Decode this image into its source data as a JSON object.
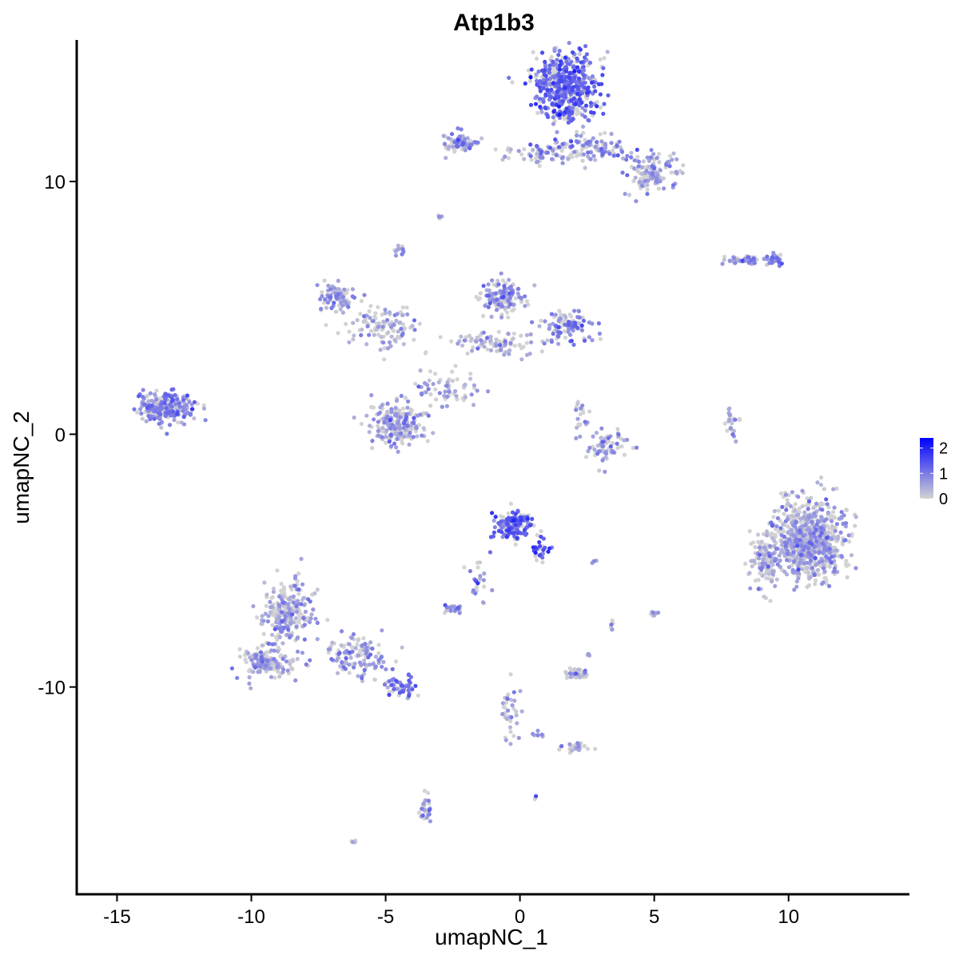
{
  "chart_data": {
    "type": "scatter",
    "title": "Atp1b3",
    "xlabel": "umapNC_1",
    "ylabel": "umapNC_2",
    "xlim": [
      -16.5,
      14.5
    ],
    "ylim": [
      -18.2,
      15.6
    ],
    "x_ticks": [
      -15,
      -10,
      -5,
      0,
      5,
      10
    ],
    "x_tick_labels": [
      "-15",
      "-10",
      "-5",
      "0",
      "5",
      "10"
    ],
    "y_ticks": [
      -10,
      0,
      10
    ],
    "y_tick_labels": [
      "-10",
      "0",
      "10"
    ],
    "color_scale": {
      "low": "#d3d3d3",
      "high": "#0000ff",
      "min": 0,
      "max": 2.4,
      "ticks": [
        2,
        1,
        0
      ],
      "tick_labels": [
        "2",
        "1",
        "0"
      ],
      "legend_position": "right"
    },
    "clusters": [
      {
        "center": [
          1.7,
          13.8
        ],
        "spread": [
          1.1,
          1.3
        ],
        "count": 520,
        "mean_expr": 1.15
      },
      {
        "center": [
          4.8,
          10.3
        ],
        "spread": [
          0.9,
          0.7
        ],
        "count": 140,
        "mean_expr": 0.45
      },
      {
        "center": [
          2.5,
          11.3
        ],
        "spread": [
          1.5,
          0.5
        ],
        "count": 120,
        "mean_expr": 0.75
      },
      {
        "center": [
          -2.2,
          11.5
        ],
        "spread": [
          0.6,
          0.35
        ],
        "count": 70,
        "mean_expr": 0.8
      },
      {
        "center": [
          0.4,
          11.1
        ],
        "spread": [
          1.2,
          0.3
        ],
        "count": 40,
        "mean_expr": 0.55
      },
      {
        "center": [
          -3.0,
          8.6
        ],
        "spread": [
          0.1,
          0.1
        ],
        "count": 6,
        "mean_expr": 0.5
      },
      {
        "center": [
          -4.5,
          7.3
        ],
        "spread": [
          0.15,
          0.2
        ],
        "count": 12,
        "mean_expr": 0.65
      },
      {
        "center": [
          -6.8,
          5.4
        ],
        "spread": [
          0.6,
          0.5
        ],
        "count": 90,
        "mean_expr": 0.6
      },
      {
        "center": [
          -5.0,
          4.2
        ],
        "spread": [
          1.2,
          0.8
        ],
        "count": 110,
        "mean_expr": 0.35
      },
      {
        "center": [
          -0.6,
          5.4
        ],
        "spread": [
          0.8,
          0.6
        ],
        "count": 130,
        "mean_expr": 0.7
      },
      {
        "center": [
          1.8,
          4.3
        ],
        "spread": [
          0.8,
          0.5
        ],
        "count": 110,
        "mean_expr": 0.85
      },
      {
        "center": [
          -1.0,
          3.6
        ],
        "spread": [
          1.8,
          0.5
        ],
        "count": 90,
        "mean_expr": 0.4
      },
      {
        "center": [
          -4.6,
          0.4
        ],
        "spread": [
          0.9,
          0.8
        ],
        "count": 240,
        "mean_expr": 0.5
      },
      {
        "center": [
          -2.5,
          1.8
        ],
        "spread": [
          1.2,
          0.6
        ],
        "count": 60,
        "mean_expr": 0.35
      },
      {
        "center": [
          -13.2,
          1.1
        ],
        "spread": [
          0.9,
          0.55
        ],
        "count": 260,
        "mean_expr": 0.75
      },
      {
        "center": [
          3.3,
          -0.5
        ],
        "spread": [
          0.7,
          0.6
        ],
        "count": 70,
        "mean_expr": 0.55
      },
      {
        "center": [
          2.3,
          0.8
        ],
        "spread": [
          0.3,
          0.6
        ],
        "count": 20,
        "mean_expr": 0.6
      },
      {
        "center": [
          8.2,
          6.9
        ],
        "spread": [
          0.7,
          0.15
        ],
        "count": 55,
        "mean_expr": 0.75
      },
      {
        "center": [
          9.5,
          6.9
        ],
        "spread": [
          0.35,
          0.2
        ],
        "count": 35,
        "mean_expr": 0.9
      },
      {
        "center": [
          7.9,
          0.4
        ],
        "spread": [
          0.2,
          0.6
        ],
        "count": 25,
        "mean_expr": 0.35
      },
      {
        "center": [
          10.8,
          -4.2
        ],
        "spread": [
          1.2,
          1.4
        ],
        "count": 780,
        "mean_expr": 0.45
      },
      {
        "center": [
          9.1,
          -5.0
        ],
        "spread": [
          0.5,
          1.2
        ],
        "count": 110,
        "mean_expr": 0.35
      },
      {
        "center": [
          -0.2,
          -3.6
        ],
        "spread": [
          0.6,
          0.5
        ],
        "count": 150,
        "mean_expr": 1.25
      },
      {
        "center": [
          0.8,
          -4.6
        ],
        "spread": [
          0.3,
          0.5
        ],
        "count": 30,
        "mean_expr": 1.3
      },
      {
        "center": [
          -1.5,
          -5.8
        ],
        "spread": [
          0.35,
          0.7
        ],
        "count": 25,
        "mean_expr": 0.8
      },
      {
        "center": [
          -2.5,
          -6.9
        ],
        "spread": [
          0.35,
          0.15
        ],
        "count": 25,
        "mean_expr": 0.6
      },
      {
        "center": [
          2.8,
          -5.0
        ],
        "spread": [
          0.1,
          0.1
        ],
        "count": 5,
        "mean_expr": 0.5
      },
      {
        "center": [
          -8.7,
          -7.0
        ],
        "spread": [
          0.9,
          1.2
        ],
        "count": 230,
        "mean_expr": 0.45
      },
      {
        "center": [
          -9.4,
          -9.0
        ],
        "spread": [
          0.9,
          0.6
        ],
        "count": 170,
        "mean_expr": 0.55
      },
      {
        "center": [
          -6.0,
          -8.8
        ],
        "spread": [
          1.1,
          0.8
        ],
        "count": 120,
        "mean_expr": 0.65
      },
      {
        "center": [
          -4.3,
          -10.0
        ],
        "spread": [
          0.6,
          0.4
        ],
        "count": 50,
        "mean_expr": 1.0
      },
      {
        "center": [
          2.1,
          -9.5
        ],
        "spread": [
          0.4,
          0.2
        ],
        "count": 40,
        "mean_expr": 0.25
      },
      {
        "center": [
          2.6,
          -8.7
        ],
        "spread": [
          0.1,
          0.1
        ],
        "count": 5,
        "mean_expr": 0.3
      },
      {
        "center": [
          5.0,
          -7.1
        ],
        "spread": [
          0.12,
          0.2
        ],
        "count": 12,
        "mean_expr": 0.55
      },
      {
        "center": [
          3.4,
          -7.6
        ],
        "spread": [
          0.08,
          0.2
        ],
        "count": 6,
        "mean_expr": 0.3
      },
      {
        "center": [
          -0.4,
          -11.0
        ],
        "spread": [
          0.35,
          1.3
        ],
        "count": 35,
        "mean_expr": 0.45
      },
      {
        "center": [
          2.0,
          -12.4
        ],
        "spread": [
          0.5,
          0.15
        ],
        "count": 25,
        "mean_expr": 0.35
      },
      {
        "center": [
          0.7,
          -11.9
        ],
        "spread": [
          0.3,
          0.1
        ],
        "count": 8,
        "mean_expr": 0.4
      },
      {
        "center": [
          -3.5,
          -14.8
        ],
        "spread": [
          0.2,
          0.5
        ],
        "count": 30,
        "mean_expr": 0.55
      },
      {
        "center": [
          0.6,
          -14.4
        ],
        "spread": [
          0.05,
          0.05
        ],
        "count": 4,
        "mean_expr": 1.6
      },
      {
        "center": [
          -6.2,
          -16.1
        ],
        "spread": [
          0.08,
          0.05
        ],
        "count": 4,
        "mean_expr": 0.5
      }
    ]
  }
}
